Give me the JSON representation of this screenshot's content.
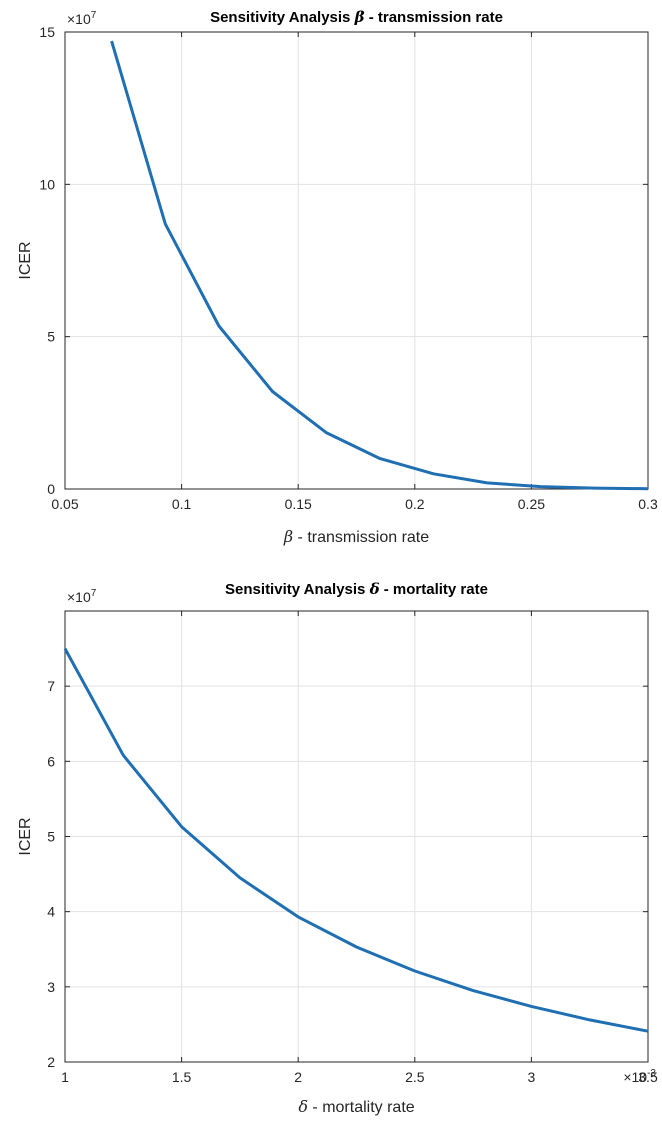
{
  "chart_data": [
    {
      "type": "line",
      "title_prefix": "Sensitivity Analysis ",
      "title_symbol": "β",
      "title_suffix": " - transmission rate",
      "xlabel_symbol": "β",
      "xlabel_suffix": " - transmission rate",
      "ylabel": "ICER",
      "y_exponent": "×10",
      "y_exponent_power": "7",
      "x_exponent": "",
      "x_exponent_power": "",
      "xlim": [
        0.05,
        0.3
      ],
      "ylim": [
        0,
        15
      ],
      "xticks": [
        0.05,
        0.1,
        0.15,
        0.2,
        0.25,
        0.3
      ],
      "xtick_labels": [
        "0.05",
        "0.1",
        "0.15",
        "0.2",
        "0.25",
        "0.3"
      ],
      "yticks": [
        0,
        5,
        10,
        15
      ],
      "ytick_labels": [
        "0",
        "5",
        "10",
        "15"
      ],
      "grid": true,
      "series": [
        {
          "color": "#1f6fb2",
          "x": [
            0.07,
            0.093,
            0.116,
            0.139,
            0.162,
            0.185,
            0.208,
            0.231,
            0.254,
            0.277,
            0.3
          ],
          "y": [
            14.7,
            8.7,
            5.35,
            3.2,
            1.85,
            1.0,
            0.5,
            0.2,
            0.08,
            0.03,
            0.01
          ]
        }
      ]
    },
    {
      "type": "line",
      "title_prefix": "Sensitivity Analysis ",
      "title_symbol": "δ",
      "title_suffix": " - mortality rate",
      "xlabel_symbol": "δ",
      "xlabel_suffix": " - mortality rate",
      "ylabel": "ICER",
      "y_exponent": "×10",
      "y_exponent_power": "7",
      "x_exponent": "×10",
      "x_exponent_power": "-3",
      "xlim": [
        1,
        3.5
      ],
      "ylim": [
        2,
        8
      ],
      "xticks": [
        1,
        1.5,
        2,
        2.5,
        3,
        3.5
      ],
      "xtick_labels": [
        "1",
        "1.5",
        "2",
        "2.5",
        "3",
        "3.5"
      ],
      "yticks": [
        2,
        3,
        4,
        5,
        6,
        7
      ],
      "ytick_labels": [
        "2",
        "3",
        "4",
        "5",
        "6",
        "7"
      ],
      "grid": true,
      "series": [
        {
          "color": "#1f6fb2",
          "x": [
            1,
            1.25,
            1.5,
            1.75,
            2,
            2.25,
            2.5,
            2.75,
            3,
            3.25,
            3.5
          ],
          "y": [
            7.5,
            6.08,
            5.13,
            4.45,
            3.93,
            3.53,
            3.21,
            2.95,
            2.74,
            2.56,
            2.41
          ]
        }
      ]
    }
  ]
}
